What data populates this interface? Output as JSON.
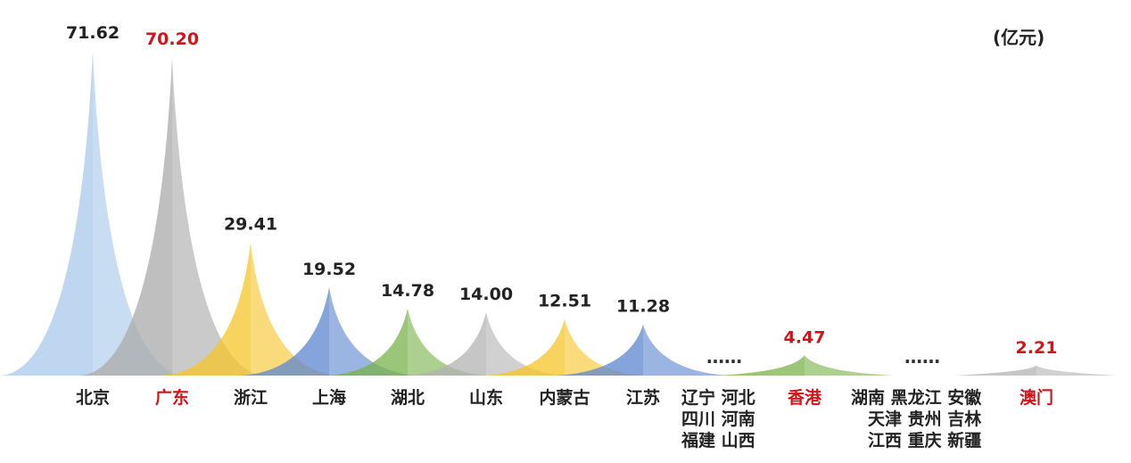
{
  "chart_data": {
    "type": "area",
    "unit": "(亿元)",
    "peaks": [
      {
        "label": "北京",
        "value": 71.62,
        "color": "#a8c8ea",
        "highlight": false
      },
      {
        "label": "广东",
        "value": 70.2,
        "color": "#a9a9a9",
        "highlight": true
      },
      {
        "label": "浙江",
        "value": 29.41,
        "color": "#f6c52a",
        "highlight": false
      },
      {
        "label": "上海",
        "value": 19.52,
        "color": "#5c86cf",
        "highlight": false
      },
      {
        "label": "湖北",
        "value": 14.78,
        "color": "#79b24b",
        "highlight": false
      },
      {
        "label": "山东",
        "value": 14.0,
        "color": "#b3b3b3",
        "highlight": false
      },
      {
        "label": "内蒙古",
        "value": 12.51,
        "color": "#f6c52a",
        "highlight": false
      },
      {
        "label": "江苏",
        "value": 11.28,
        "color": "#5c86cf",
        "highlight": false
      },
      {
        "label": "香港",
        "value": 4.47,
        "color": "#79b24b",
        "highlight": true
      },
      {
        "label": "澳门",
        "value": 2.21,
        "color": "#b3b3b3",
        "highlight": true
      }
    ],
    "group1": {
      "rows": [
        "辽宁 河北",
        "四川 河南",
        "福建 山西"
      ]
    },
    "group2": {
      "rows": [
        "湖南 黑龙江 安徽",
        "天津 贵州 吉林",
        "江西 重庆 新疆"
      ]
    },
    "ellipsis": "……"
  },
  "colors": {
    "highlight_text": "#d0141a",
    "normal_text": "#222222"
  }
}
